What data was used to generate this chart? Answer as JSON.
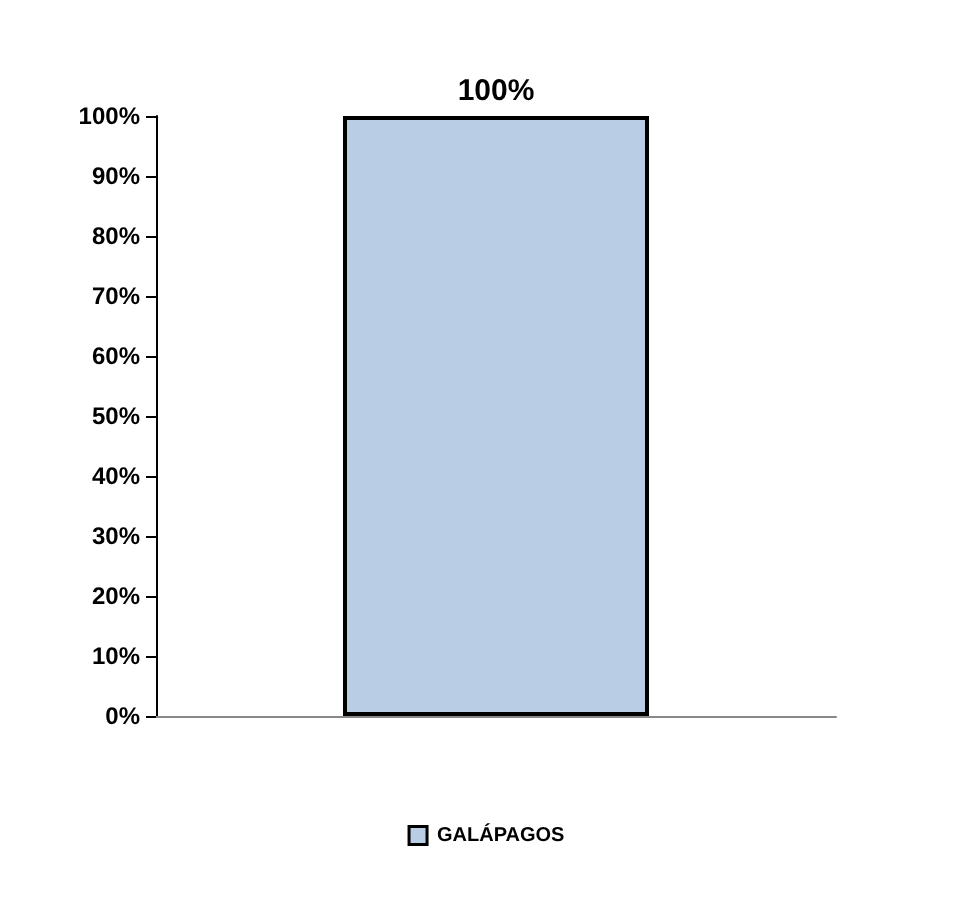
{
  "chart_data": {
    "type": "bar",
    "categories": [
      null
    ],
    "series": [
      {
        "name": "GALÁPAGOS",
        "color": "#b9cde5",
        "values": [
          100
        ],
        "value_labels": [
          "100%"
        ]
      }
    ],
    "ylim": [
      0,
      100
    ],
    "yticks": [
      {
        "value": 0,
        "label": "0%"
      },
      {
        "value": 10,
        "label": "10%"
      },
      {
        "value": 20,
        "label": "20%"
      },
      {
        "value": 30,
        "label": "30%"
      },
      {
        "value": 40,
        "label": "40%"
      },
      {
        "value": 50,
        "label": "50%"
      },
      {
        "value": 60,
        "label": "60%"
      },
      {
        "value": 70,
        "label": "70%"
      },
      {
        "value": 80,
        "label": "80%"
      },
      {
        "value": 90,
        "label": "90%"
      },
      {
        "value": 100,
        "label": "100%"
      }
    ],
    "grid": false,
    "legend": "bottom"
  }
}
